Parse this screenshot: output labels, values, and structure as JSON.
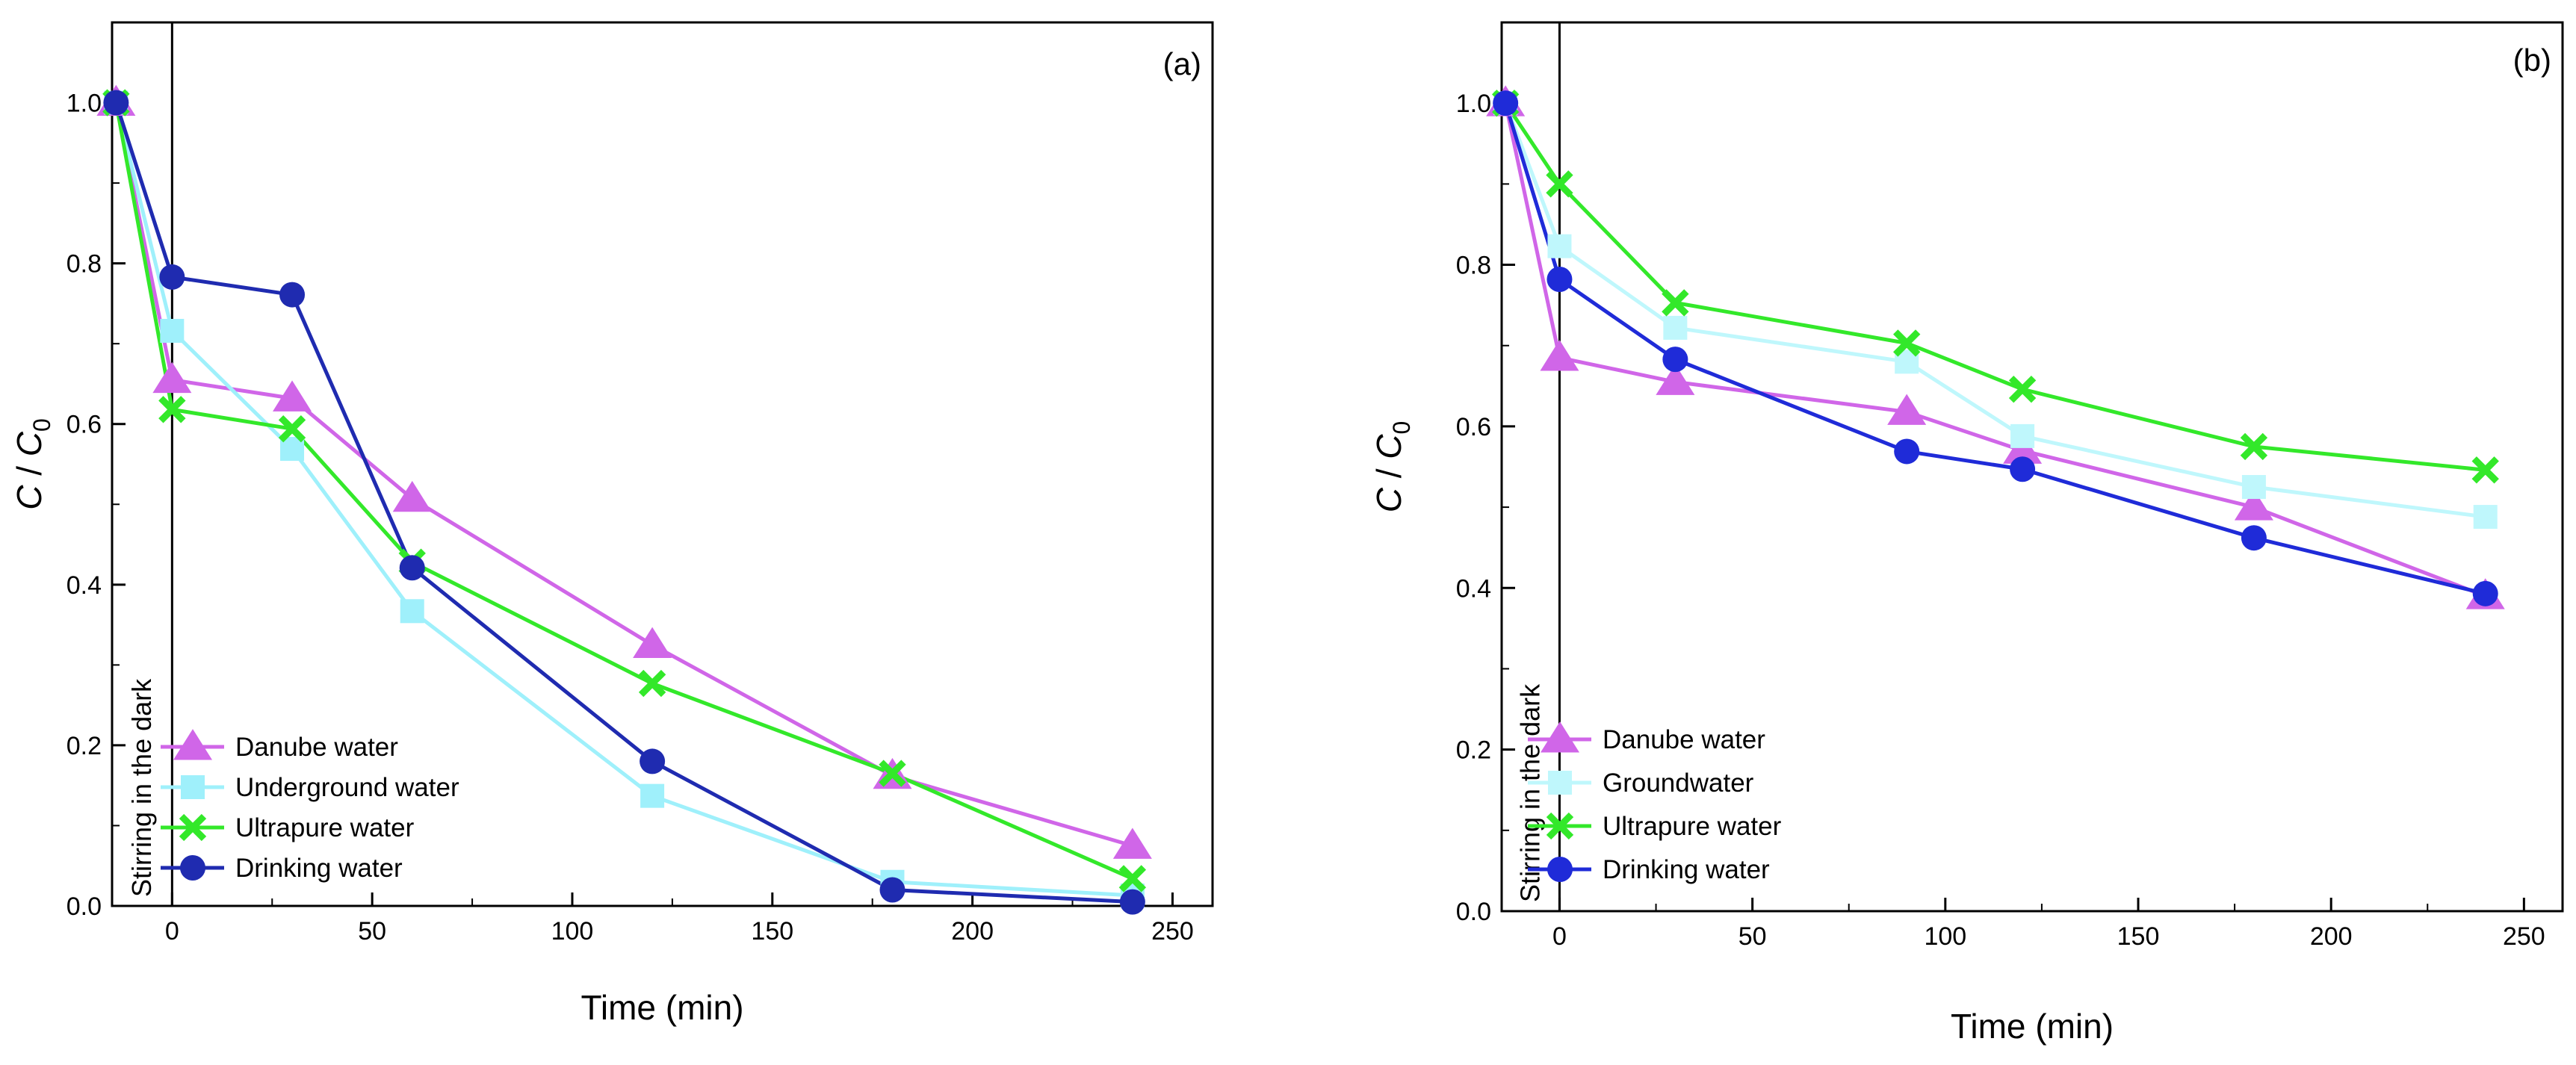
{
  "chart_data": [
    {
      "type": "line",
      "panel_label": "(a)",
      "xlabel": "Time (min)",
      "ylabel": {
        "c": "C",
        "sep": " / ",
        "c0": "C",
        "sub": "0"
      },
      "xlim": [
        -15,
        260
      ],
      "ylim": [
        0,
        1.1
      ],
      "xticks": [
        0,
        50,
        100,
        150,
        200,
        250
      ],
      "yticks": [
        "0.0",
        "0.2",
        "0.4",
        "0.6",
        "0.8",
        "1.0"
      ],
      "annotation": "Stirring in the dark",
      "vline_x": 0,
      "legend_position": "bottom-left",
      "x": [
        -14,
        0,
        30,
        60,
        120,
        180,
        240
      ],
      "series": [
        {
          "name": "Danube water",
          "marker": "triangle",
          "color": "#d066e8",
          "values": [
            1.0,
            0.655,
            0.632,
            0.507,
            0.325,
            0.162,
            0.075
          ]
        },
        {
          "name": "Underground water",
          "marker": "square",
          "color": "#9ff0fb",
          "values": [
            1.0,
            0.716,
            0.569,
            0.367,
            0.137,
            0.03,
            0.013
          ]
        },
        {
          "name": "Ultrapure water",
          "marker": "x",
          "color": "#33e82a",
          "values": [
            1.0,
            0.618,
            0.594,
            0.428,
            0.277,
            0.165,
            0.034
          ]
        },
        {
          "name": "Drinking water",
          "marker": "circle",
          "color": "#1f2bb0",
          "values": [
            1.0,
            0.783,
            0.761,
            0.421,
            0.18,
            0.02,
            0.005
          ]
        }
      ]
    },
    {
      "type": "line",
      "panel_label": "(b)",
      "xlabel": "Time (min)",
      "ylabel": {
        "c": "C",
        "sep": "  / ",
        "c0": "C",
        "sub": "0"
      },
      "xlim": [
        -15,
        260
      ],
      "ylim": [
        0,
        1.1
      ],
      "xticks": [
        0,
        50,
        100,
        150,
        200,
        250
      ],
      "yticks": [
        "0.0",
        "0.2",
        "0.4",
        "0.6",
        "0.8",
        "1.0"
      ],
      "annotation": "Stirring in the dark",
      "vline_x": 0,
      "legend_position": "bottom-left",
      "x": [
        -14,
        0,
        30,
        90,
        120,
        180,
        240
      ],
      "series": [
        {
          "name": "Danube water",
          "marker": "triangle",
          "color": "#d066e8",
          "values": [
            1.0,
            0.685,
            0.655,
            0.618,
            0.57,
            0.5,
            0.39
          ]
        },
        {
          "name": "Groundwater",
          "marker": "square",
          "color": "#bff7fc",
          "values": [
            1.0,
            0.823,
            0.722,
            0.68,
            0.588,
            0.525,
            0.488
          ]
        },
        {
          "name": "Ultrapure water",
          "marker": "x",
          "color": "#33e82a",
          "values": [
            1.0,
            0.9,
            0.753,
            0.703,
            0.646,
            0.575,
            0.546
          ]
        },
        {
          "name": "Drinking water",
          "marker": "circle",
          "color": "#1f2bd8",
          "values": [
            1.0,
            0.782,
            0.683,
            0.569,
            0.547,
            0.462,
            0.393
          ]
        }
      ]
    }
  ]
}
